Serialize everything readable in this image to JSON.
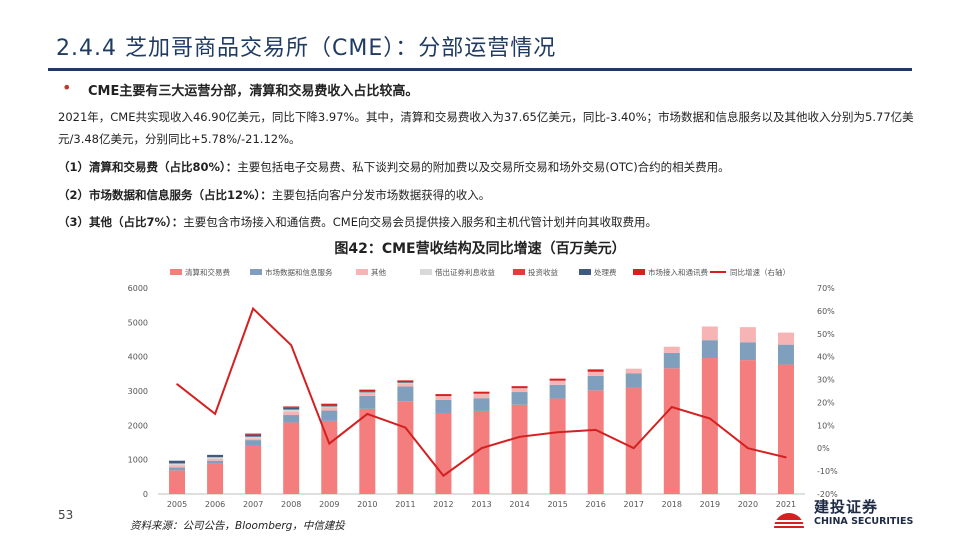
{
  "slide": {
    "title": "2.4.4 芝加哥商品交易所（CME）：分部运营情况",
    "headline": "CME主要有三大运营分部，清算和交易费收入占比较高。",
    "paragraph_1": "2021年，CME共实现收入46.90亿美元，同比下降3.97%。其中，清算和交易费收入为37.65亿美元，同比-3.40%；市场数据和信息服务以及其他收入分别为5.77亿美元/3.48亿美元，分别同比+5.78%/-21.12%。",
    "item_1_label": "（1）清算和交易费（占比80%）：",
    "item_1_text": "主要包括电子交易费、私下谈判交易的附加费以及交易所交易和场外交易(OTC)合约的相关费用。",
    "item_2_label": "（2）市场数据和信息服务（占比12%）：",
    "item_2_text": "主要包括向客户分发市场数据获得的收入。",
    "item_3_label": "（3）其他（占比7%）：",
    "item_3_text": "主要包含市场接入和通信费。CME向交易会员提供接入服务和主机代管计划并向其收取费用。",
    "figure_title": "图42：CME营收结构及同比增速（百万美元）",
    "page_number": "53",
    "source": "资料来源：公司公告，Bloomberg，中信建投",
    "logo_cn": "建投证券",
    "logo_en": "CHINA SECURITIES"
  },
  "colors": {
    "title": "#1f3b63",
    "clearing": "#f47d7d",
    "market_data": "#7f9fbc",
    "other": "#f6b4b4",
    "securities_lending": "#d9d9d9",
    "investment": "#e83a3a",
    "processing": "#3e5a7e",
    "market_access": "#d62020",
    "yoy_line": "#d42020"
  },
  "chart_data": {
    "type": "bar",
    "title": "CME营收结构及同比增速（百万美元）",
    "categories": [
      "2005",
      "2006",
      "2007",
      "2008",
      "2009",
      "2010",
      "2011",
      "2012",
      "2013",
      "2014",
      "2015",
      "2016",
      "2017",
      "2018",
      "2019",
      "2020",
      "2021"
    ],
    "y_left": {
      "min": 0,
      "max": 6000,
      "ticks": [
        0,
        1000,
        2000,
        3000,
        4000,
        5000,
        6000
      ]
    },
    "y_right": {
      "min": -20,
      "max": 70,
      "ticks": [
        "-20%",
        "-10%",
        "0%",
        "10%",
        "20%",
        "30%",
        "40%",
        "50%",
        "60%",
        "70%"
      ]
    },
    "legend_position": "top",
    "series": [
      {
        "name": "清算和交易费",
        "key": "clearing",
        "kind": "bar",
        "values": [
          690,
          880,
          1400,
          2080,
          2130,
          2480,
          2700,
          2360,
          2420,
          2600,
          2780,
          3020,
          3100,
          3660,
          3960,
          3900,
          3770
        ]
      },
      {
        "name": "市场数据和信息服务",
        "key": "market_data",
        "kind": "bar",
        "values": [
          80,
          90,
          170,
          220,
          300,
          380,
          430,
          380,
          370,
          370,
          400,
          420,
          410,
          450,
          520,
          520,
          580
        ]
      },
      {
        "name": "其他",
        "key": "other",
        "kind": "bar",
        "values": [
          70,
          60,
          50,
          100,
          90,
          80,
          90,
          100,
          120,
          100,
          110,
          120,
          140,
          180,
          400,
          440,
          350
        ]
      },
      {
        "name": "借出证券利息收益",
        "key": "securities_lending",
        "kind": "bar",
        "values": [
          50,
          40,
          50,
          60,
          30,
          20,
          20,
          10,
          10,
          10,
          10,
          0,
          0,
          0,
          0,
          0,
          0
        ]
      },
      {
        "name": "投资收益",
        "key": "investment",
        "kind": "bar",
        "values": [
          0,
          0,
          0,
          0,
          0,
          0,
          0,
          0,
          0,
          0,
          0,
          0,
          0,
          0,
          0,
          0,
          0
        ]
      },
      {
        "name": "处理费",
        "key": "processing",
        "kind": "bar",
        "values": [
          80,
          70,
          60,
          50,
          40,
          30,
          20,
          0,
          0,
          0,
          0,
          0,
          0,
          0,
          0,
          0,
          0
        ]
      },
      {
        "name": "市场接入和通讯费",
        "key": "market_access",
        "kind": "bar",
        "values": [
          0,
          0,
          30,
          40,
          40,
          50,
          50,
          60,
          60,
          60,
          60,
          70,
          0,
          0,
          0,
          0,
          0
        ]
      },
      {
        "name": "同比增速（右轴）",
        "key": "yoy_line",
        "kind": "line",
        "axis": "right",
        "values": [
          28,
          15,
          61,
          45,
          2,
          15,
          9,
          -12,
          0,
          5,
          7,
          8,
          0,
          18,
          13,
          0,
          -4
        ]
      }
    ]
  }
}
